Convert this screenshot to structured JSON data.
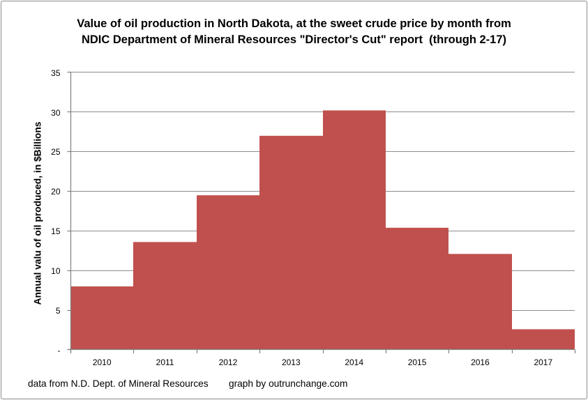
{
  "chart_data": {
    "type": "bar",
    "title": "Value of oil production in North Dakota, at the sweet crude price by month from NDIC Department of Mineral Resources \"Director's Cut\" report  (through 2-17)",
    "title_line1": "Value of oil production in North Dakota, at the sweet crude price by month from",
    "title_line2": "NDIC Department of Mineral Resources \"Director's Cut\" report  (through 2-17)",
    "categories": [
      "2010",
      "2011",
      "2012",
      "2013",
      "2014",
      "2015",
      "2016",
      "2017"
    ],
    "values": [
      7.9,
      13.5,
      19.4,
      26.9,
      30.1,
      15.3,
      12.0,
      2.5
    ],
    "xlabel": "",
    "ylabel": "Annual valu of oil produced, in $Billions",
    "ylim": [
      0,
      35
    ],
    "y_tick_interval": 5,
    "y_tick_labels": [
      "35",
      "30",
      "25",
      "20",
      "15",
      "10",
      "5",
      "-"
    ],
    "y_tick_values": [
      35,
      30,
      25,
      20,
      15,
      10,
      5,
      0
    ],
    "grid": true,
    "legend": false,
    "bar_gap_percent": 0,
    "colors": {
      "bar": "#C0504D",
      "axis": "#7F7F7F",
      "gridline": "#8C8C8C",
      "text": "#000000",
      "frame_border": "#8B8B8B",
      "background": "#FFFFFF"
    }
  },
  "footer": {
    "source_note": "data from N.D. Dept. of Mineral Resources",
    "credit_note": "graph by outrunchange.com"
  }
}
